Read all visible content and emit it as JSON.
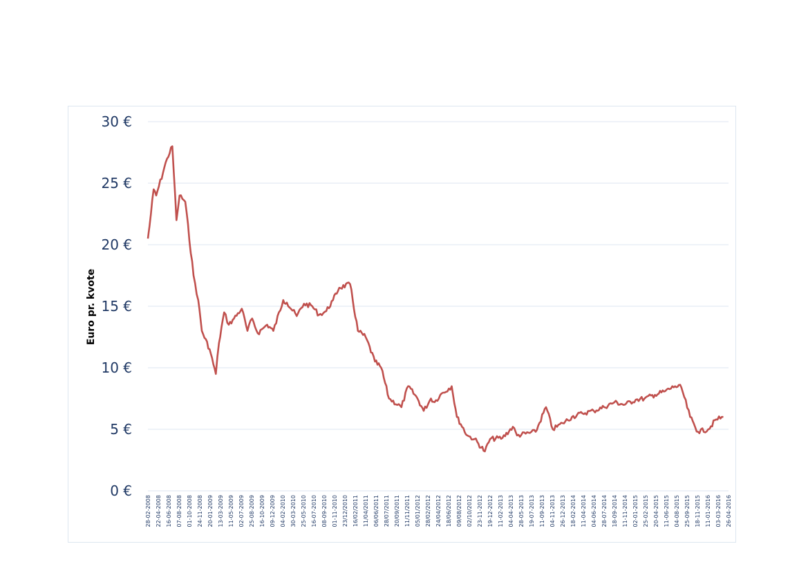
{
  "chart_data": {
    "type": "line",
    "title": "",
    "xlabel": "",
    "ylabel": "Euro pr. kvote",
    "ylim": [
      0,
      30
    ],
    "yticks": [
      "0 €",
      "5 €",
      "10 €",
      "15 €",
      "20 €",
      "25 €",
      "30 €"
    ],
    "grid": true,
    "legend": "none",
    "line_color": "#c0504d",
    "categories": [
      "28-02-2008",
      "22-04-2008",
      "16-06-2008",
      "07-08-2008",
      "01-10-2008",
      "24-11-2008",
      "20-01-2009",
      "13-03-2009",
      "11-05-2009",
      "02-07-2009",
      "25-08-2009",
      "16-10-2009",
      "09-12-2009",
      "04-02-2010",
      "30-03-2010",
      "25-05-2010",
      "16-07-2010",
      "08-09-2010",
      "01-11-2010",
      "23/12/2010",
      "16/02/2011",
      "11/04/2011",
      "06/06/2011",
      "28/07/2011",
      "20/09/2011",
      "11/11/2011",
      "05/01/2012",
      "28/02/2012",
      "24/04/2012",
      "18/06/2012",
      "09/08/2012",
      "02/10/2012",
      "23-11-2012",
      "19-12-2012",
      "11-02-2013",
      "04-04-2013",
      "28-05-2013",
      "19-07-2013",
      "11-09-2013",
      "04-11-2013",
      "26-12-2013",
      "18-02-2014",
      "11-04-2014",
      "04-06-2014",
      "28-07-2014",
      "18-09-2014",
      "11-11-2014",
      "02-01-2015",
      "25-02-2015",
      "20-04-2015",
      "11-06-2015",
      "04-08-2015",
      "25-09-2015",
      "18-11-2015",
      "11-01-2016",
      "03-03-2016",
      "26-04-2016"
    ],
    "series": [
      {
        "name": "",
        "values": [
          20.5,
          21.5,
          24.5,
          24.0,
          27.0,
          28.0,
          22.0,
          24.0,
          23.5,
          17.5,
          15.5,
          13.0,
          11.5,
          9.5,
          12.0,
          14.5,
          13.5,
          14.0,
          14.8,
          13.0,
          14.0,
          12.8,
          13.2,
          13.5,
          13.0,
          15.5,
          15.3,
          14.2,
          15.2,
          15.0,
          14.3,
          14.6,
          15.5,
          16.5,
          16.8,
          13.0,
          12.5,
          10.5,
          10.0,
          7.5,
          6.8,
          8.5,
          7.5,
          6.5,
          7.5,
          7.2,
          7.8,
          8.5,
          6.0,
          4.5,
          4.2,
          3.2,
          4.2,
          4.3,
          5.2,
          4.5,
          4.8,
          6.8,
          5.0,
          5.5,
          6.0,
          6.3,
          6.5,
          6.8,
          7.2,
          7.0,
          7.4,
          7.5,
          7.8,
          8.1,
          8.5,
          8.4,
          6.0,
          4.8,
          5.0,
          5.8,
          6.0
        ],
        "x": [
          0.0,
          0.15,
          0.55,
          0.8,
          1.85,
          2.35,
          2.75,
          3.05,
          3.6,
          4.4,
          4.85,
          5.2,
          5.95,
          6.55,
          6.85,
          7.35,
          7.8,
          8.3,
          9.05,
          9.6,
          10.05,
          10.6,
          11.1,
          11.5,
          12.1,
          13.05,
          13.4,
          14.35,
          15.05,
          15.85,
          16.5,
          17.2,
          17.85,
          18.45,
          19.5,
          20.25,
          21.0,
          21.9,
          22.5,
          23.25,
          24.45,
          25.1,
          26.0,
          26.6,
          27.3,
          27.65,
          28.2,
          29.3,
          29.8,
          30.8,
          31.5,
          32.5,
          33.0,
          34.2,
          35.2,
          35.6,
          37.4,
          38.4,
          39.05,
          40.0,
          40.9,
          41.9,
          43.0,
          44.0,
          45.0,
          46.0,
          47.05,
          47.9,
          48.9,
          49.9,
          50.85,
          51.45,
          52.3,
          53.05,
          54.05,
          54.8,
          55.5
        ]
      }
    ]
  }
}
